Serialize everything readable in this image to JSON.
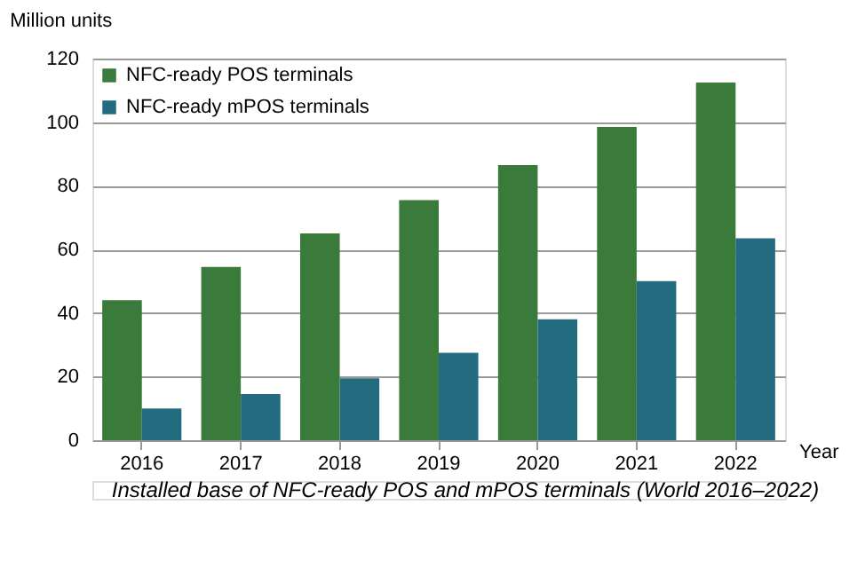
{
  "chart_data": {
    "type": "bar",
    "ylabel": "Million units",
    "xlabel": "Year",
    "annotations": [
      "Installed base of NFC-ready POS and mPOS terminals (World 2016–2022)"
    ],
    "categories": [
      "2016",
      "2017",
      "2018",
      "2019",
      "2020",
      "2021",
      "2022"
    ],
    "series": [
      {
        "name": "NFC-ready POS terminals",
        "color": "#3a7a3a",
        "values": [
          44,
          54.5,
          65,
          75.5,
          86.5,
          98.5,
          112.5
        ]
      },
      {
        "name": "NFC-ready mPOS terminals",
        "color": "#236c80",
        "values": [
          10,
          14.5,
          19.5,
          27.5,
          38,
          50,
          63.5
        ]
      }
    ],
    "ylim": [
      0,
      120
    ],
    "yticks": [
      0,
      20,
      40,
      60,
      80,
      100,
      120
    ],
    "grid": "y",
    "legend": "top left"
  }
}
